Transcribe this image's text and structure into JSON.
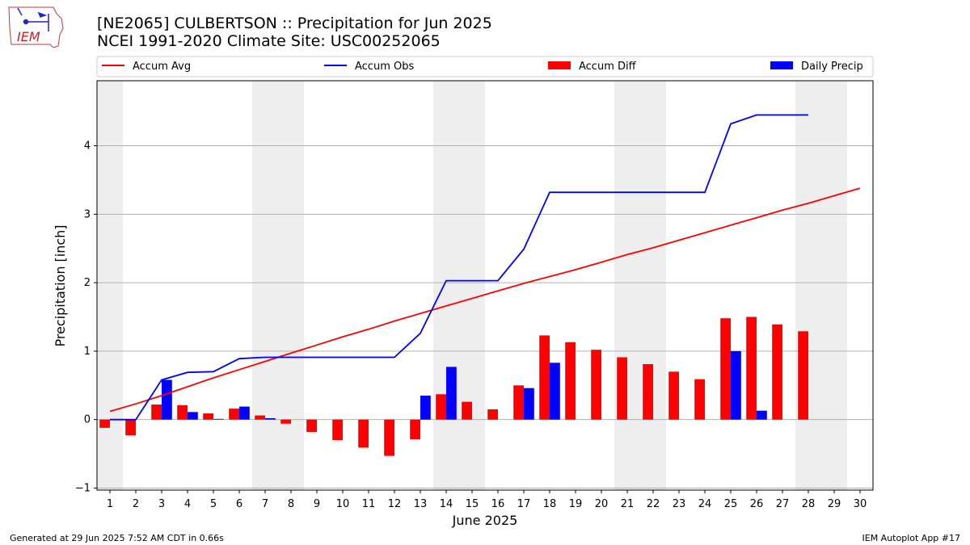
{
  "header": {
    "title": "[NE2065] CULBERTSON :: Precipitation for Jun 2025",
    "subtitle": "NCEI 1991-2020 Climate Site: USC00252065",
    "logo_text": "IEM"
  },
  "footer": {
    "left": "Generated at 29 Jun 2025 7:52 AM CDT in 0.66s",
    "right": "IEM Autoplot App #17"
  },
  "colors": {
    "avg": "#ff0000",
    "obs": "#0000ff",
    "diff": "#ff0000",
    "daily": "#0000ff",
    "weekend_band": "#eeeeee",
    "grid": "#b0b0b0"
  },
  "chart_data": {
    "type": "bar",
    "xlabel": "June 2025",
    "ylabel": "Precipitation [inch]",
    "xlim": [
      0.5,
      30.5
    ],
    "ylim": [
      -1.03,
      4.95
    ],
    "grid": "horizontal",
    "legend_placement": "top, outside plot",
    "x": [
      1,
      2,
      3,
      4,
      5,
      6,
      7,
      8,
      9,
      10,
      11,
      12,
      13,
      14,
      15,
      16,
      17,
      18,
      19,
      20,
      21,
      22,
      23,
      24,
      25,
      26,
      27,
      28,
      29,
      30
    ],
    "weekend_days": [
      1,
      7,
      8,
      14,
      15,
      21,
      22,
      28,
      29
    ],
    "yticks": [
      -1,
      0,
      1,
      2,
      3,
      4
    ],
    "series": [
      {
        "name": "Accum Avg",
        "kind": "line",
        "values": [
          0.12,
          0.23,
          0.35,
          0.48,
          0.61,
          0.73,
          0.85,
          0.97,
          1.09,
          1.21,
          1.32,
          1.44,
          1.55,
          1.66,
          1.77,
          1.88,
          1.99,
          2.09,
          2.19,
          2.3,
          2.41,
          2.51,
          2.62,
          2.73,
          2.84,
          2.95,
          3.06,
          3.16,
          3.27,
          3.38
        ]
      },
      {
        "name": "Accum Obs",
        "kind": "line",
        "values": [
          0.0,
          0.0,
          0.58,
          0.69,
          0.7,
          0.89,
          0.91,
          0.91,
          0.91,
          0.91,
          0.91,
          0.91,
          1.26,
          2.03,
          2.03,
          2.03,
          2.49,
          3.32,
          3.32,
          3.32,
          3.32,
          3.32,
          3.32,
          3.32,
          4.32,
          4.45,
          4.45,
          4.45,
          null,
          null
        ]
      },
      {
        "name": "Accum Diff",
        "kind": "bar",
        "values": [
          -0.12,
          -0.23,
          0.22,
          0.21,
          0.09,
          0.16,
          0.06,
          -0.06,
          -0.18,
          -0.3,
          -0.41,
          -0.53,
          -0.29,
          0.37,
          0.26,
          0.15,
          0.5,
          1.23,
          1.13,
          1.02,
          0.91,
          0.81,
          0.7,
          0.59,
          1.48,
          1.5,
          1.39,
          1.29,
          null,
          null
        ]
      },
      {
        "name": "Daily Precip",
        "kind": "bar",
        "values": [
          0.0,
          0.0,
          0.58,
          0.11,
          0.01,
          0.19,
          0.02,
          0.0,
          0.0,
          0.0,
          0.0,
          0.0,
          0.35,
          0.77,
          0.0,
          0.0,
          0.46,
          0.83,
          0.0,
          0.0,
          0.0,
          0.0,
          0.0,
          0.0,
          1.0,
          0.13,
          0.0,
          0.0,
          null,
          null
        ]
      }
    ]
  }
}
